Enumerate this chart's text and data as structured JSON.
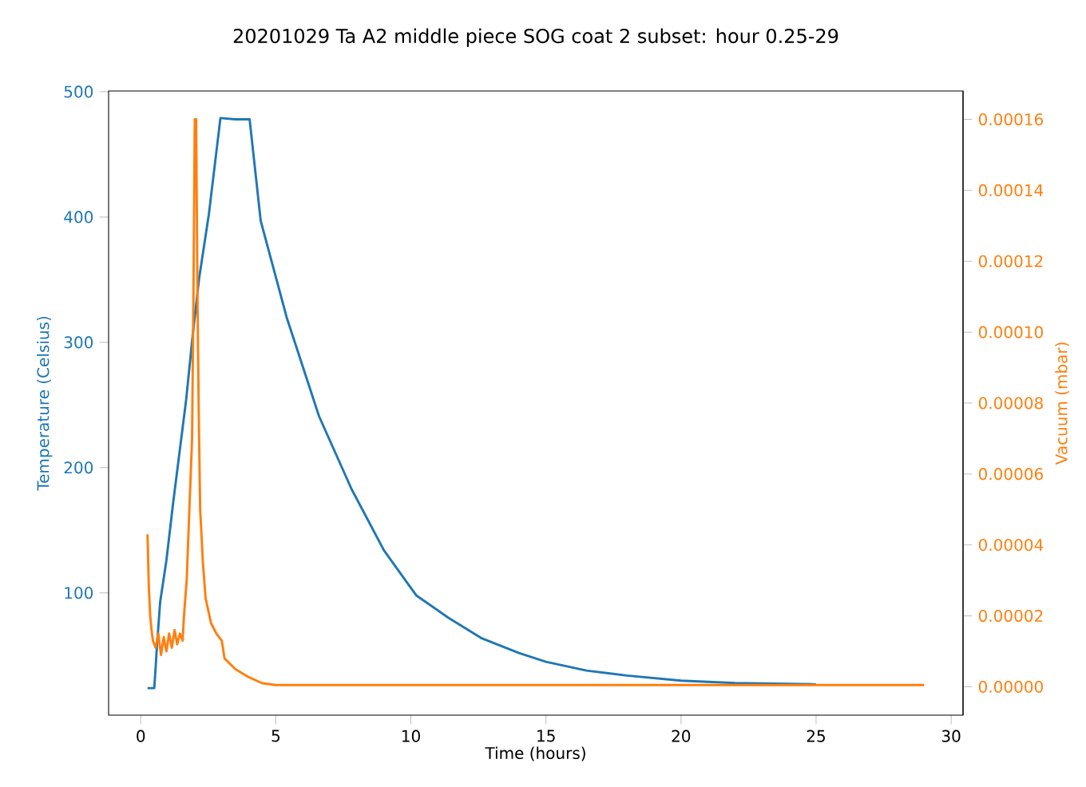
{
  "chart_data": {
    "type": "line",
    "title": "20201029 Ta A2 middle piece SOG coat 2 subset: hour 0.25-29",
    "xlabel": "Time (hours)",
    "ylabel": "Temperature (Celsius)",
    "y2label": "Vacuum (mbar)",
    "xlim": [
      -1.19,
      30.44
    ],
    "ylim": [
      2.4,
      500.6
    ],
    "y2lim": [
      -8e-06,
      0.000168
    ],
    "xticks": [
      0,
      5,
      10,
      15,
      20,
      25,
      30
    ],
    "yticks": [
      100,
      200,
      300,
      400,
      500
    ],
    "y2ticks": [
      {
        "value": 0,
        "label": "0.00000"
      },
      {
        "value": 2e-05,
        "label": "0.00002"
      },
      {
        "value": 4e-05,
        "label": "0.00004"
      },
      {
        "value": 6e-05,
        "label": "0.00006"
      },
      {
        "value": 8e-05,
        "label": "0.00008"
      },
      {
        "value": 0.0001,
        "label": "0.00010"
      },
      {
        "value": 0.00012,
        "label": "0.00012"
      },
      {
        "value": 0.00014,
        "label": "0.00014"
      },
      {
        "value": 0.00016,
        "label": "0.00016"
      }
    ],
    "series": [
      {
        "color": "#1f77b4",
        "x": [
          0.25,
          0.5,
          0.55,
          0.6,
          0.72,
          0.95,
          1.2,
          1.44,
          1.68,
          1.92,
          2.16,
          2.52,
          2.95,
          3.5,
          4.03,
          4.44,
          5.4,
          6.6,
          7.8,
          9.0,
          10.2,
          11.4,
          12.6,
          14.0,
          15.0,
          16.5,
          18.0,
          20.0,
          22.0,
          25.0
        ],
        "values": [
          24,
          24,
          40,
          58,
          93,
          126,
          172,
          213,
          254,
          305,
          351,
          402,
          479,
          478,
          478,
          397,
          320,
          241,
          183,
          134,
          98,
          80,
          64,
          52,
          45,
          38,
          34,
          30,
          28,
          27
        ]
      },
      {
        "color": "#ff7f0e",
        "axis": "y2",
        "x": [
          0.25,
          0.3,
          0.35,
          0.4,
          0.45,
          0.55,
          0.65,
          0.75,
          0.85,
          0.95,
          1.05,
          1.15,
          1.25,
          1.35,
          1.45,
          1.55,
          1.6,
          1.7,
          1.8,
          1.9,
          1.95,
          2.0,
          2.05,
          2.1,
          2.15,
          2.2,
          2.3,
          2.4,
          2.6,
          2.8,
          3.0,
          3.1,
          3.5,
          4.0,
          4.5,
          5.0,
          7.0,
          10.0,
          15.0,
          20.0,
          25.0,
          29.0
        ],
        "values": [
          4.3e-05,
          2.8e-05,
          2e-05,
          1.6e-05,
          1.3e-05,
          1.1e-05,
          1.5e-05,
          9e-06,
          1.4e-05,
          1e-05,
          1.5e-05,
          1.1e-05,
          1.6e-05,
          1.2e-05,
          1.5e-05,
          1.3e-05,
          2e-05,
          3e-05,
          5e-05,
          7e-05,
          0.00011,
          0.00016,
          0.00016,
          0.00011,
          7.5e-05,
          5e-05,
          3.5e-05,
          2.5e-05,
          1.8e-05,
          1.5e-05,
          1.3e-05,
          8e-06,
          5e-06,
          2.7e-06,
          1e-06,
          5e-07,
          5e-07,
          5e-07,
          5e-07,
          5e-07,
          5e-07,
          5e-07
        ]
      }
    ]
  }
}
